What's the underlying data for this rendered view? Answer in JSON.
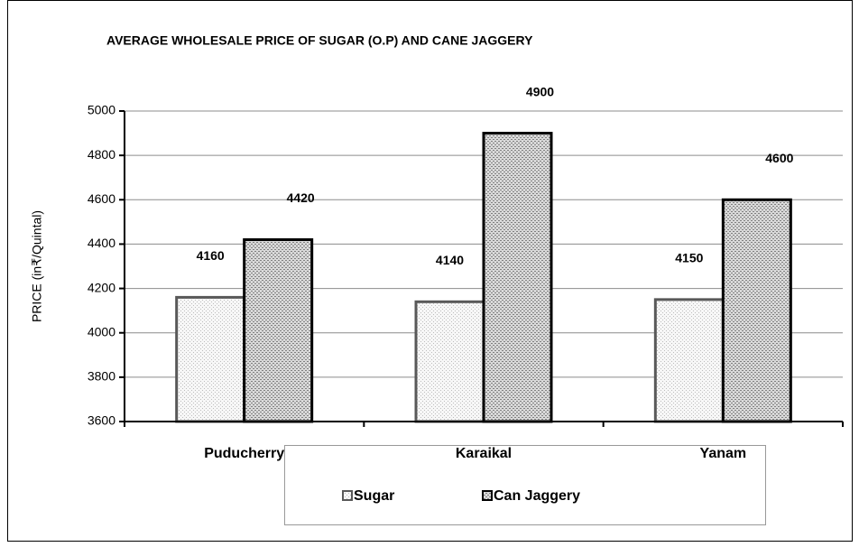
{
  "chart_data": {
    "type": "bar",
    "title": "AVERAGE WHOLESALE PRICE OF SUGAR (O.P) AND CANE JAGGERY",
    "y_label": "PRICE (in₹/Quintal)",
    "categories": [
      "Puducherry",
      "Karaikal",
      "Yanam"
    ],
    "series": [
      {
        "name": "Sugar",
        "color": "#595959",
        "values": [
          4160,
          4140,
          4150
        ]
      },
      {
        "name": "Can Jaggery",
        "color": "#000000",
        "values": [
          4420,
          4900,
          4600
        ]
      }
    ],
    "ylim": [
      3600,
      5000
    ],
    "yticks": [
      3600,
      3800,
      4000,
      4200,
      4400,
      4600,
      4800,
      5000
    ],
    "grid": true,
    "legend": "bottom"
  }
}
